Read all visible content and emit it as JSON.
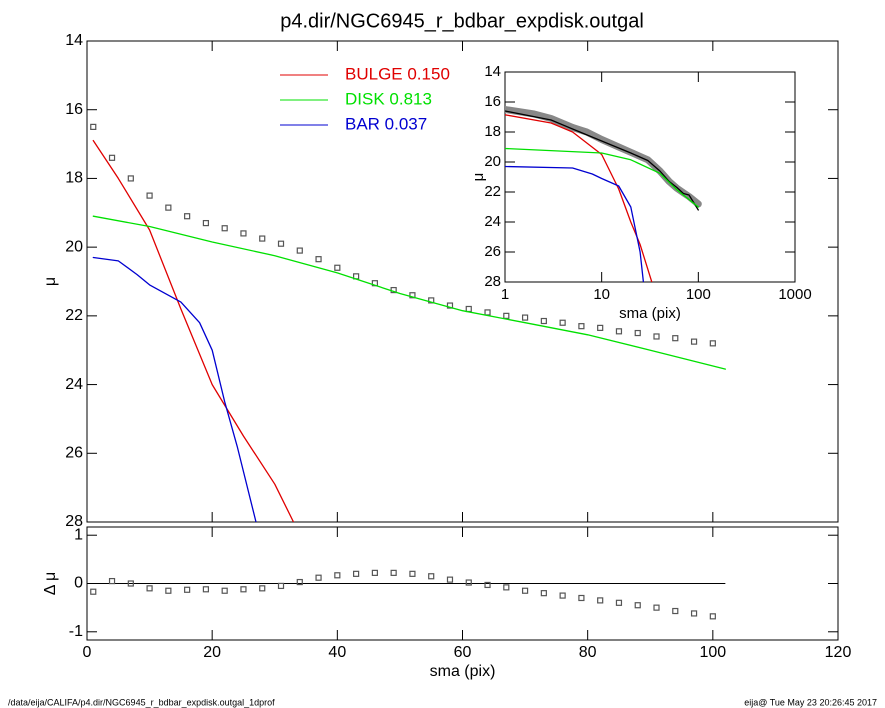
{
  "chart_data": [
    {
      "type": "line",
      "title": "p4.dir/NGC6945_r_bdbar_expdisk.outgal",
      "ylabel": "μ",
      "xlim": [
        0,
        120
      ],
      "xticks": [
        0,
        20,
        40,
        60,
        80,
        100,
        120
      ],
      "xtick_labels": false,
      "ylim": [
        28,
        14
      ],
      "yticks": [
        14,
        16,
        18,
        20,
        22,
        24,
        26,
        28
      ],
      "series": [
        {
          "marker": "square",
          "color": "#555555",
          "x": [
            1,
            4,
            7,
            10,
            13,
            16,
            19,
            22,
            25,
            28,
            31,
            34,
            37,
            40,
            43,
            46,
            49,
            52,
            55,
            58,
            61,
            64,
            67,
            70,
            73,
            76,
            79,
            82,
            85,
            88,
            91,
            94,
            97,
            100
          ],
          "values": [
            16.5,
            17.4,
            18.0,
            18.5,
            18.85,
            19.1,
            19.3,
            19.45,
            19.6,
            19.75,
            19.9,
            20.1,
            20.35,
            20.6,
            20.85,
            21.05,
            21.25,
            21.4,
            21.55,
            21.7,
            21.8,
            21.9,
            22.0,
            22.05,
            22.15,
            22.2,
            22.3,
            22.35,
            22.45,
            22.5,
            22.6,
            22.65,
            22.75,
            22.8
          ]
        },
        {
          "name": "BULGE  0.150",
          "color": "#e00000",
          "x": [
            1,
            5,
            10,
            15,
            20,
            25,
            30,
            33
          ],
          "values": [
            16.9,
            18.0,
            19.5,
            21.8,
            24.0,
            25.5,
            26.9,
            28.0
          ]
        },
        {
          "name": "DISK  0.813",
          "color": "#00e000",
          "x": [
            1,
            10,
            20,
            30,
            40,
            50,
            60,
            70,
            80,
            90,
            102
          ],
          "values": [
            19.1,
            19.4,
            19.85,
            20.25,
            20.75,
            21.35,
            21.85,
            22.2,
            22.55,
            23.0,
            23.55
          ]
        },
        {
          "name": "BAR  0.037",
          "color": "#0000d0",
          "x": [
            1,
            5,
            8,
            10,
            15,
            18,
            20,
            22,
            24,
            27
          ],
          "values": [
            20.3,
            20.4,
            20.8,
            21.1,
            21.6,
            22.2,
            23.0,
            24.5,
            25.8,
            28.0
          ]
        }
      ]
    },
    {
      "type": "line",
      "xlabel": "sma (pix)",
      "ylabel": "μ",
      "xscale": "log",
      "xlim": [
        1,
        1000
      ],
      "xticks": [
        1,
        10,
        100,
        1000
      ],
      "xtick_labels": true,
      "ylim": [
        28,
        14
      ],
      "yticks": [
        14,
        16,
        18,
        20,
        22,
        24,
        26,
        28
      ],
      "series": [
        {
          "marker": "thick",
          "color": "#888888",
          "x": [
            1,
            2,
            3,
            5,
            7,
            10,
            15,
            20,
            30,
            40,
            50,
            60,
            70,
            80,
            100
          ],
          "values": [
            16.5,
            16.8,
            17.1,
            17.7,
            18.0,
            18.5,
            19.0,
            19.35,
            19.85,
            20.6,
            21.3,
            21.75,
            22.05,
            22.3,
            22.8
          ]
        },
        {
          "color": "#000000",
          "x": [
            1,
            3,
            5,
            10,
            20,
            30,
            40,
            50,
            60,
            70,
            80,
            100
          ],
          "values": [
            16.6,
            17.2,
            17.8,
            18.6,
            19.4,
            19.9,
            20.6,
            21.3,
            21.7,
            22.1,
            22.2,
            23.2
          ]
        },
        {
          "color": "#e00000",
          "x": [
            1,
            3,
            5,
            10,
            15,
            20,
            25,
            33
          ],
          "values": [
            16.85,
            17.4,
            18.0,
            19.5,
            21.8,
            24.0,
            25.5,
            28.0
          ]
        },
        {
          "color": "#00e000",
          "x": [
            1,
            10,
            20,
            40,
            60,
            100
          ],
          "values": [
            19.1,
            19.4,
            19.85,
            20.75,
            21.85,
            23.0
          ]
        },
        {
          "color": "#0000d0",
          "x": [
            1,
            5,
            8,
            10,
            15,
            20,
            25,
            27
          ],
          "values": [
            20.3,
            20.4,
            20.8,
            21.1,
            21.6,
            23.0,
            26.0,
            28.0
          ]
        }
      ]
    },
    {
      "type": "line",
      "xlabel": "sma (pix)",
      "ylabel": "Δ μ",
      "xlim": [
        0,
        120
      ],
      "xticks": [
        0,
        20,
        40,
        60,
        80,
        100,
        120
      ],
      "xtick_labels": true,
      "ylim": [
        -1.17,
        1.17
      ],
      "yticks": [
        -1,
        0,
        1
      ],
      "hline": 0,
      "series": [
        {
          "marker": "square",
          "color": "#555555",
          "x": [
            1,
            4,
            7,
            10,
            13,
            16,
            19,
            22,
            25,
            28,
            31,
            34,
            37,
            40,
            43,
            46,
            49,
            52,
            55,
            58,
            61,
            64,
            67,
            70,
            73,
            76,
            79,
            82,
            85,
            88,
            91,
            94,
            97,
            100
          ],
          "values": [
            -0.17,
            0.05,
            0.0,
            -0.1,
            -0.15,
            -0.13,
            -0.12,
            -0.15,
            -0.12,
            -0.1,
            -0.05,
            0.03,
            0.12,
            0.17,
            0.2,
            0.22,
            0.22,
            0.2,
            0.15,
            0.08,
            0.02,
            -0.03,
            -0.08,
            -0.15,
            -0.2,
            -0.25,
            -0.3,
            -0.35,
            -0.4,
            -0.45,
            -0.5,
            -0.57,
            -0.62,
            -0.68
          ]
        }
      ]
    }
  ],
  "footer": {
    "left": "/data/eija/CALIFA/p4.dir/NGC6945_r_bdbar_expdisk.outgal_1dprof",
    "right": "eija@  Tue May 23 20:26:45 2017"
  }
}
